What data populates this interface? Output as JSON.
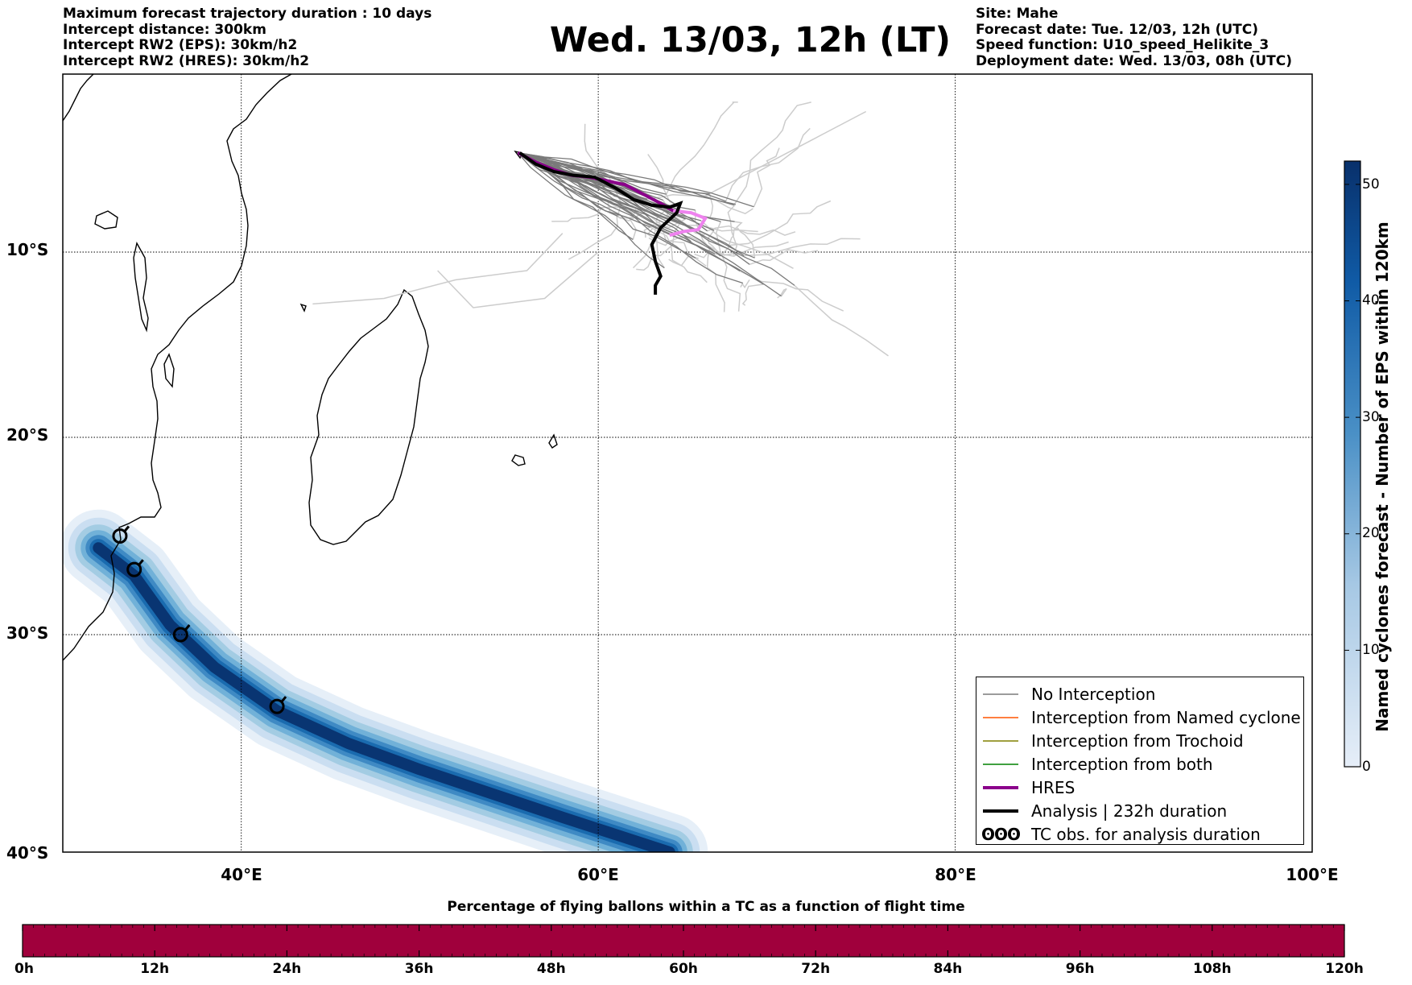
{
  "header": {
    "title": "Wed. 13/03, 12h (LT)",
    "left_lines": [
      "Maximum forecast trajectory duration : 10 days",
      "Intercept distance: 300km",
      "Intercept RW2 (EPS):  30km/h2",
      "Intercept RW2 (HRES): 30km/h2"
    ],
    "right_lines": [
      "Site: Mahe",
      "Forecast date: Tue. 12/03, 12h (UTC)",
      "Speed function: U10_speed_Helikite_3",
      "Deployment date: Wed. 13/03, 08h (UTC)"
    ]
  },
  "map": {
    "lon_range": [
      30,
      100
    ],
    "lat_range": [
      -40,
      -0.5
    ],
    "lat_labels": [
      "10°S",
      "20°S",
      "30°S",
      "40°S"
    ],
    "lat_values": [
      -10,
      -20,
      -30,
      -40
    ],
    "lon_labels": [
      "40°E",
      "60°E",
      "80°E",
      "100°E"
    ],
    "lon_values": [
      40,
      60,
      80,
      100
    ],
    "colors": {
      "eps_member": "#7a7a7a",
      "eps_member_light": "#cccccc",
      "hres": "#8b008b",
      "hres_late": "#ee82ee",
      "analysis": "#000000",
      "interception_named": "#ff5500",
      "interception_trochoid": "#808000",
      "interception_both": "#008000"
    },
    "hres_track": [
      [
        55.5,
        -4.7
      ],
      [
        56.5,
        -5.2
      ],
      [
        57.5,
        -5.6
      ],
      [
        58.5,
        -5.9
      ],
      [
        59.5,
        -6.0
      ],
      [
        60.5,
        -6.2
      ],
      [
        61.5,
        -6.4
      ],
      [
        62.5,
        -6.9
      ],
      [
        63.5,
        -7.4
      ],
      [
        64.2,
        -7.8
      ]
    ],
    "hres_track_late": [
      [
        64.2,
        -7.8
      ],
      [
        65.2,
        -7.9
      ],
      [
        66.0,
        -8.2
      ],
      [
        65.6,
        -8.8
      ],
      [
        64.8,
        -8.9
      ],
      [
        64.0,
        -9.1
      ]
    ],
    "analysis_track": [
      [
        55.6,
        -4.7
      ],
      [
        56.5,
        -5.3
      ],
      [
        57.5,
        -5.7
      ],
      [
        58.6,
        -5.9
      ],
      [
        59.8,
        -6.0
      ],
      [
        61.0,
        -6.6
      ],
      [
        62.0,
        -7.2
      ],
      [
        63.0,
        -7.5
      ],
      [
        64.0,
        -7.6
      ],
      [
        64.6,
        -7.4
      ],
      [
        64.4,
        -7.9
      ],
      [
        63.5,
        -8.7
      ],
      [
        63.0,
        -9.6
      ],
      [
        63.2,
        -10.5
      ],
      [
        63.5,
        -11.3
      ],
      [
        63.2,
        -11.8
      ],
      [
        63.2,
        -12.3
      ]
    ],
    "tc_obs": [
      [
        33.2,
        -25.0
      ],
      [
        34.0,
        -26.7
      ],
      [
        36.6,
        -30.0
      ],
      [
        42.0,
        -33.3
      ]
    ],
    "named_cyclone_density": [
      [
        32.0,
        -25.6
      ],
      [
        34.0,
        -27.0
      ],
      [
        36.0,
        -29.5
      ],
      [
        38.5,
        -31.5
      ],
      [
        42.0,
        -33.5
      ],
      [
        46.0,
        -35.0
      ],
      [
        50.0,
        -36.2
      ],
      [
        54.0,
        -37.3
      ],
      [
        58.0,
        -38.4
      ],
      [
        61.0,
        -39.2
      ],
      [
        64.0,
        -40.0
      ]
    ],
    "site": "Mahe"
  },
  "legend": {
    "items": [
      {
        "label": "No Interception",
        "color": "#7a7a7a",
        "style": "thin"
      },
      {
        "label": "Interception from Named cyclone",
        "color": "#ff5500",
        "style": "thin"
      },
      {
        "label": "Interception from Trochoid",
        "color": "#808000",
        "style": "thin"
      },
      {
        "label": "Interception from both",
        "color": "#008000",
        "style": "thin"
      },
      {
        "label": "HRES",
        "color": "#8b008b",
        "style": "thick"
      },
      {
        "label": "Analysis | 232h duration",
        "color": "#000000",
        "style": "thick"
      },
      {
        "label": "TC obs. for analysis duration",
        "color": "#000000",
        "style": "glyph",
        "glyph": "ʘʘʘ"
      }
    ]
  },
  "colorbar": {
    "title": "Named cyclones forecast - Number of EPS within 120km",
    "ticks": [
      "0",
      "10",
      "20",
      "30",
      "40",
      "50"
    ],
    "tick_values": [
      0,
      10,
      20,
      30,
      40,
      50
    ],
    "max": 52,
    "color_low": "#e6eef8",
    "color_high": "#08306b"
  },
  "time_bar": {
    "title": "Percentage of flying ballons within a TC as a function of flight time",
    "labels": [
      "0h",
      "12h",
      "24h",
      "36h",
      "48h",
      "60h",
      "72h",
      "84h",
      "96h",
      "108h",
      "120h"
    ],
    "fill_color": "#a0003c"
  }
}
